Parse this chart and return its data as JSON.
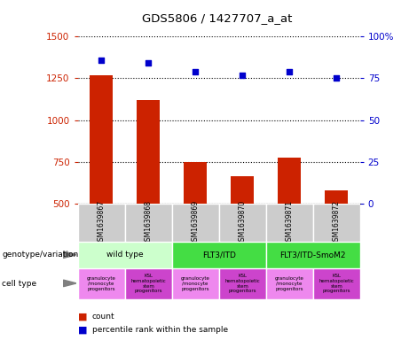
{
  "title": "GDS5806 / 1427707_a_at",
  "samples": [
    "GSM1639867",
    "GSM1639868",
    "GSM1639869",
    "GSM1639870",
    "GSM1639871",
    "GSM1639872"
  ],
  "counts": [
    1270,
    1120,
    750,
    665,
    775,
    580
  ],
  "percentiles": [
    86,
    84,
    79,
    77,
    79,
    75
  ],
  "ylim_left": [
    500,
    1500
  ],
  "ylim_right": [
    0,
    100
  ],
  "yticks_left": [
    500,
    750,
    1000,
    1250,
    1500
  ],
  "yticks_right": [
    0,
    25,
    50,
    75,
    100
  ],
  "bar_color": "#cc2200",
  "dot_color": "#0000cc",
  "bar_width": 0.5,
  "genotype_row_color_wt": "#ccffcc",
  "genotype_row_color_flt3": "#44dd44",
  "cell_type_color_granu": "#ee88ee",
  "cell_type_color_ksl": "#cc44cc",
  "sample_box_color": "#cccccc",
  "grid_style": "dotted",
  "label_genotype": "genotype/variation",
  "label_celltype": "cell type",
  "legend_count": "count",
  "legend_pct": "percentile rank within the sample",
  "geno_labels": [
    "wild type",
    "FLT3/ITD",
    "FLT3/ITD-SmoM2"
  ],
  "geno_ranges": [
    [
      0,
      2
    ],
    [
      2,
      4
    ],
    [
      4,
      6
    ]
  ],
  "geno_colors": [
    "#ccffcc",
    "#44dd44",
    "#44dd44"
  ],
  "cell_labels_granu": "granulocyte\n/monocyte\nprogenitors",
  "cell_labels_ksl": "KSL\nhematopoietic\nstem\nprogenitors"
}
